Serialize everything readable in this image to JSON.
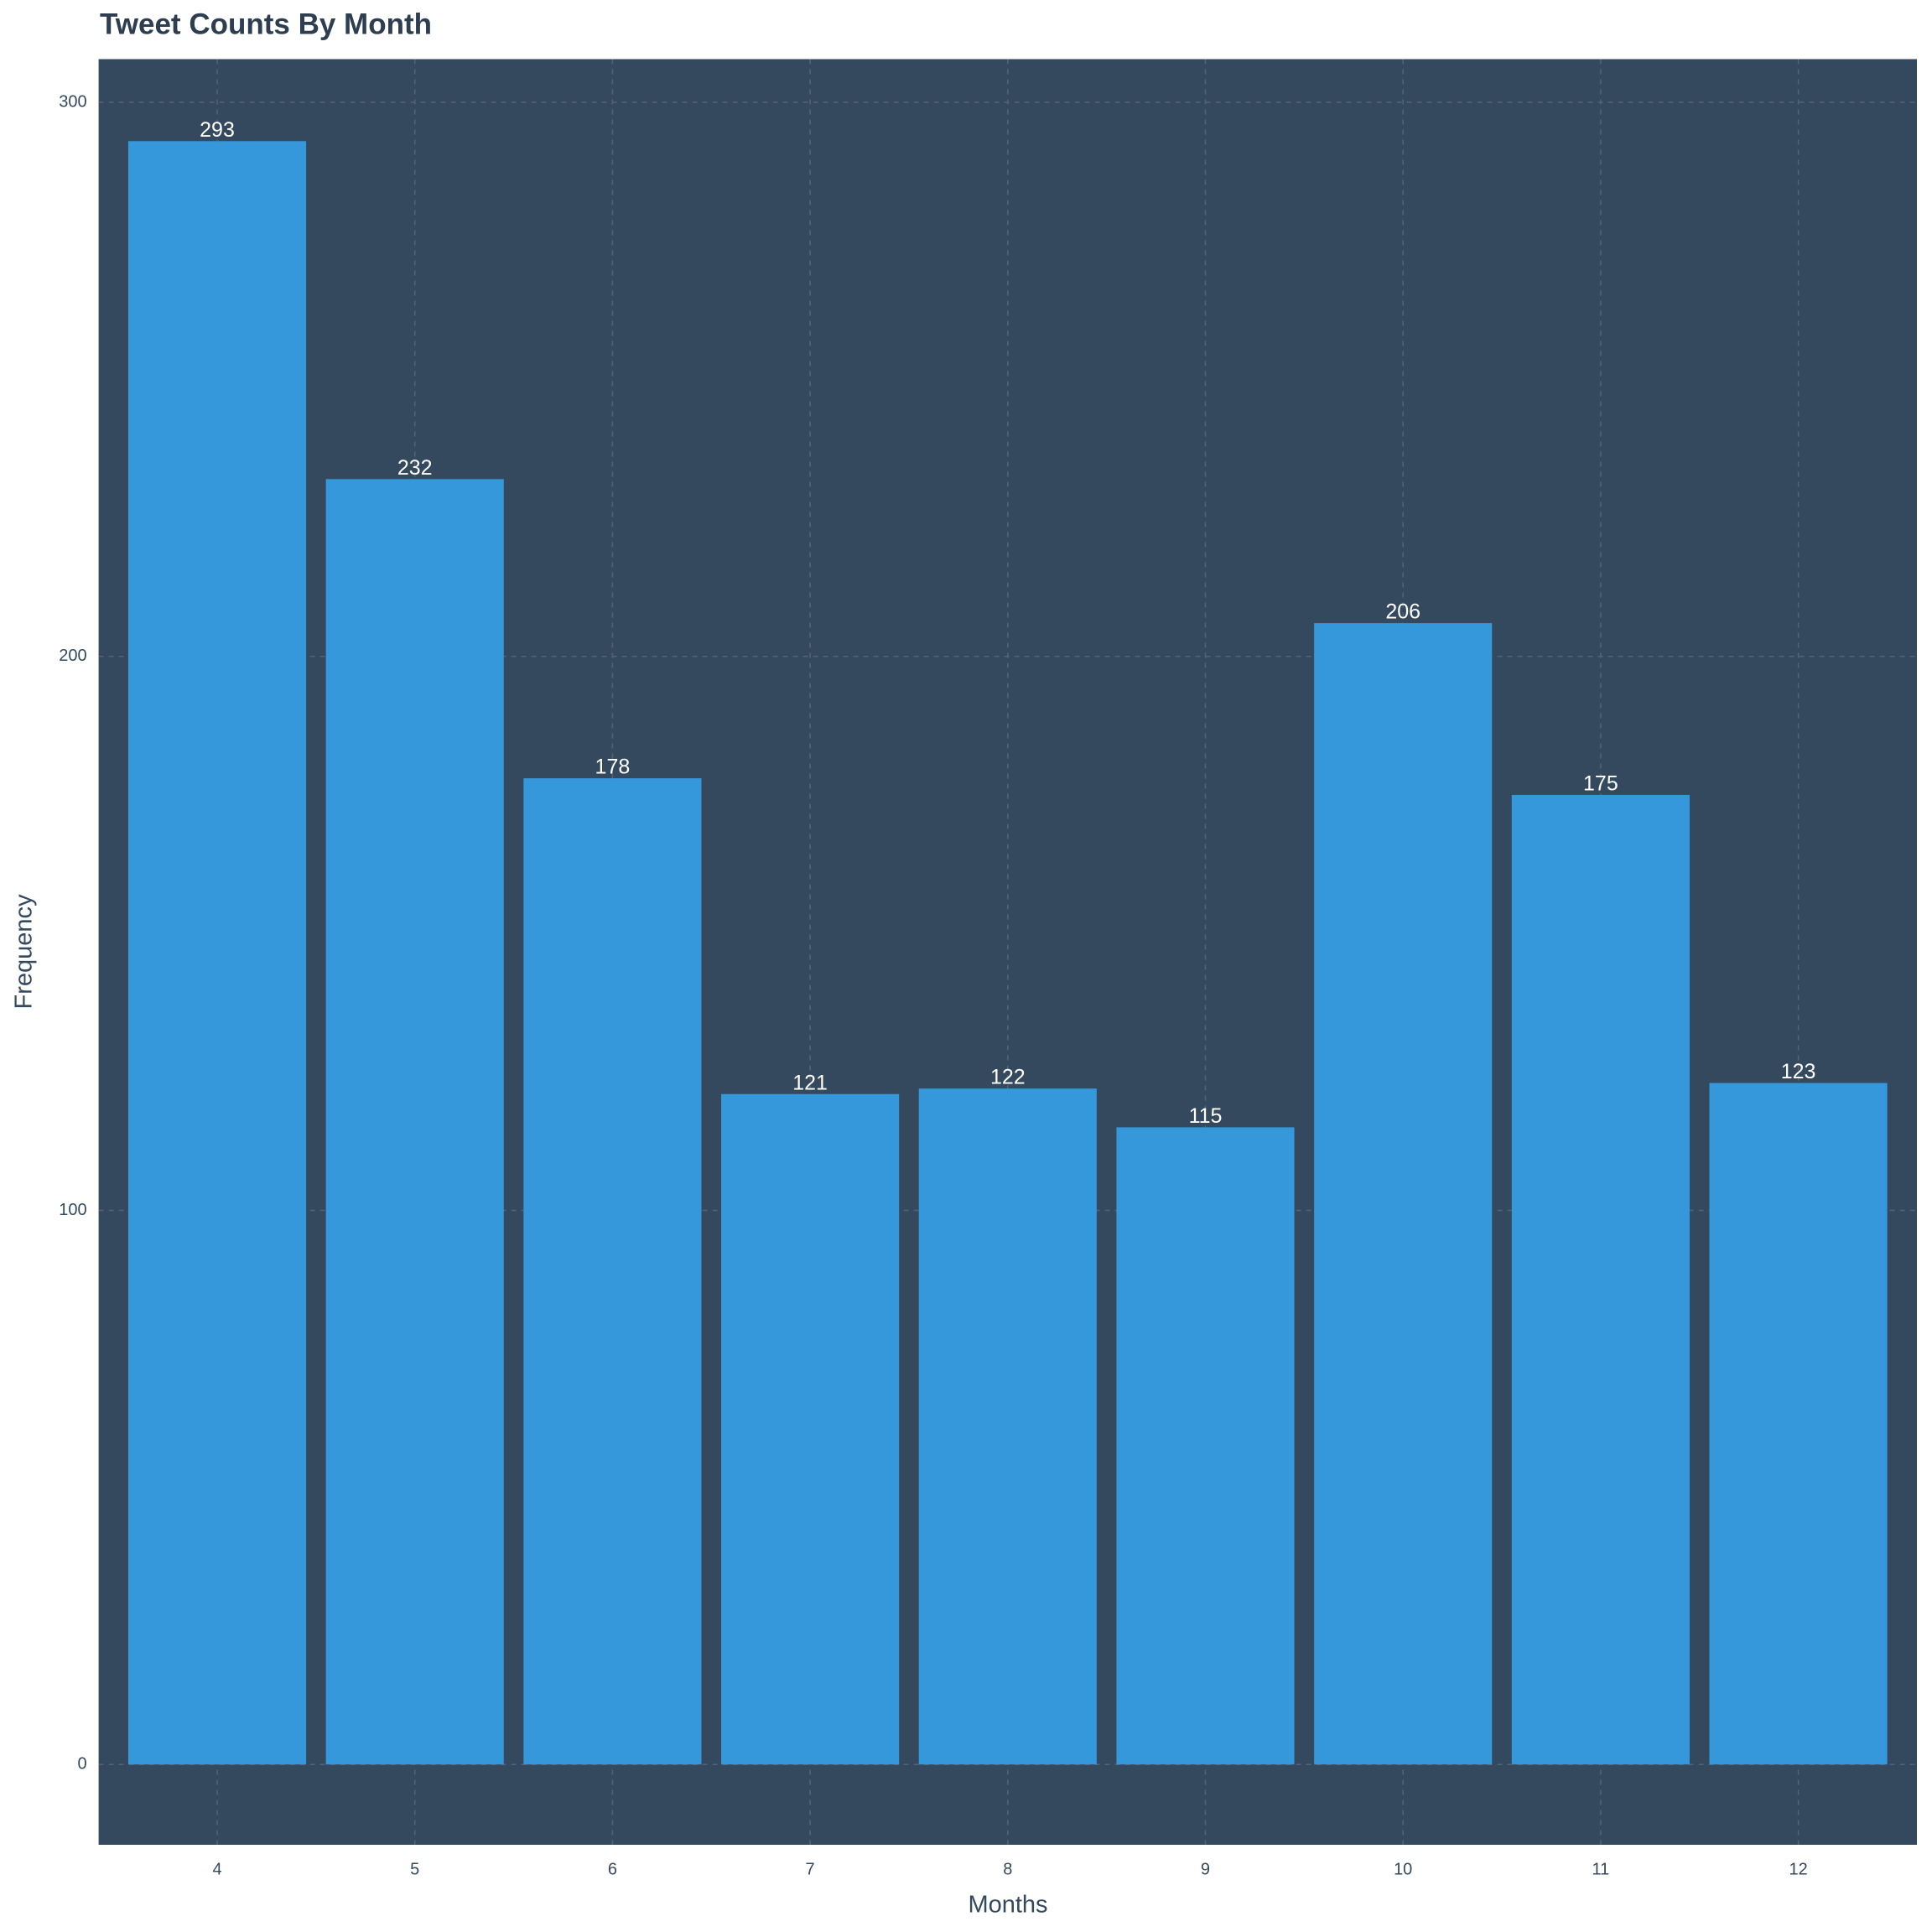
{
  "chart_data": {
    "type": "bar",
    "title": "Tweet Counts By Month",
    "x_label": "Months",
    "y_label": "Frequency",
    "categories": [
      "4",
      "5",
      "6",
      "7",
      "8",
      "9",
      "10",
      "11",
      "12"
    ],
    "values": [
      293,
      232,
      178,
      121,
      122,
      115,
      206,
      175,
      123
    ],
    "color": "#3498db",
    "ylim": [
      -14.5,
      307.8
    ],
    "yticks": [
      0,
      100,
      200,
      300
    ],
    "grid": true
  }
}
